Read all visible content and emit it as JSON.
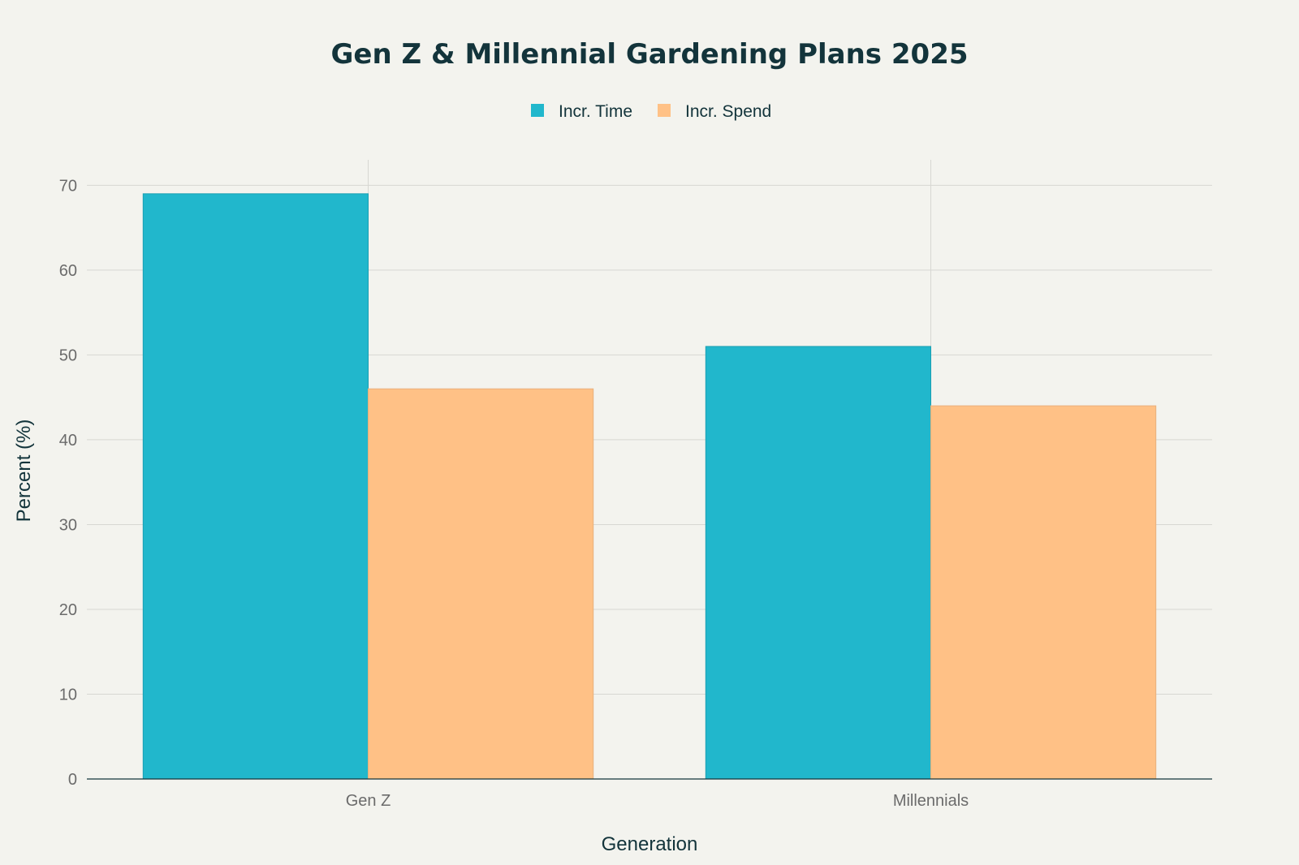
{
  "chart_data": {
    "type": "bar",
    "title": "Gen Z & Millennial Gardening Plans 2025",
    "xlabel": "Generation",
    "ylabel": "Percent (%)",
    "categories": [
      "Gen Z",
      "Millennials"
    ],
    "series": [
      {
        "name": "Incr. Time",
        "values": [
          69,
          51
        ],
        "color": "#21b7cc"
      },
      {
        "name": "Incr. Spend",
        "values": [
          46,
          44
        ],
        "color": "#ffc186"
      }
    ],
    "ylim": [
      0,
      73
    ],
    "yticks": [
      0,
      10,
      20,
      30,
      40,
      50,
      60,
      70
    ],
    "grid": true,
    "legend_position": "top-center"
  }
}
